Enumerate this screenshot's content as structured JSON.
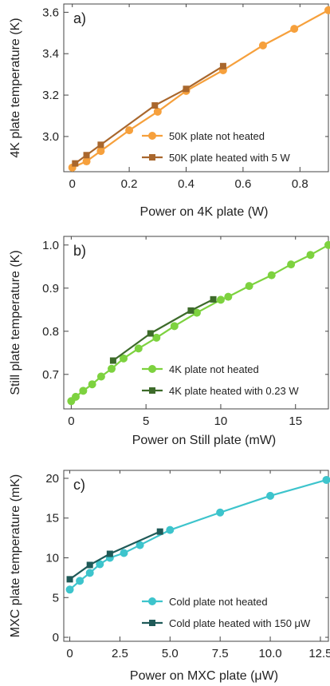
{
  "chart_data": [
    {
      "type": "line",
      "panel_label": "a)",
      "xlabel": "Power on 4K plate (W)",
      "ylabel": "4K plate temperature (K)",
      "xlim": [
        -0.03,
        0.9
      ],
      "ylim": [
        2.83,
        3.64
      ],
      "xticks": [
        0,
        0.2,
        0.4,
        0.6,
        0.8
      ],
      "xtick_labels": [
        "0",
        "0.2",
        "0.4",
        "0.6",
        "0.8"
      ],
      "yticks": [
        3.0,
        3.2,
        3.4,
        3.6
      ],
      "ytick_labels": [
        "3.0",
        "3.2",
        "3.4",
        "3.6"
      ],
      "legend_position": "bottom-right",
      "series": [
        {
          "name": "50K plate not heated",
          "marker": "circle",
          "color": "#f6a03c",
          "x": [
            0,
            0.05,
            0.1,
            0.2,
            0.3,
            0.4,
            0.53,
            0.67,
            0.78,
            0.9
          ],
          "y": [
            2.85,
            2.88,
            2.93,
            3.03,
            3.12,
            3.22,
            3.32,
            3.44,
            3.52,
            3.61
          ]
        },
        {
          "name": "50K plate heated with 5 W",
          "marker": "square",
          "color": "#a9672d",
          "x": [
            0.01,
            0.05,
            0.1,
            0.29,
            0.4,
            0.53
          ],
          "y": [
            2.87,
            2.91,
            2.96,
            3.15,
            3.23,
            3.34
          ]
        }
      ]
    },
    {
      "type": "line",
      "panel_label": "b)",
      "xlabel": "Power on Still plate (mW)",
      "ylabel": "Still plate temperature (K)",
      "xlim": [
        -0.5,
        17.2
      ],
      "ylim": [
        0.62,
        1.02
      ],
      "xticks": [
        0,
        5,
        10,
        15
      ],
      "xtick_labels": [
        "0",
        "5",
        "10",
        "15"
      ],
      "yticks": [
        0.7,
        0.8,
        0.9,
        1.0
      ],
      "ytick_labels": [
        "0.7",
        "0.8",
        "0.9",
        "1.0"
      ],
      "legend_position": "bottom-right",
      "series": [
        {
          "name": "4K plate not heated",
          "marker": "circle",
          "color": "#7dd23f",
          "x": [
            0,
            0.3,
            0.8,
            1.4,
            2.0,
            2.7,
            3.5,
            4.5,
            5.7,
            6.9,
            8.4,
            10.0,
            10.5,
            11.9,
            13.4,
            14.7,
            16.0,
            17.2
          ],
          "y": [
            0.638,
            0.648,
            0.662,
            0.677,
            0.695,
            0.713,
            0.737,
            0.76,
            0.785,
            0.812,
            0.843,
            0.873,
            0.88,
            0.905,
            0.93,
            0.955,
            0.977,
            1.0
          ]
        },
        {
          "name": "4K plate heated with 0.23 W",
          "marker": "square",
          "color": "#3d6b2a",
          "x": [
            2.8,
            5.3,
            8.0,
            9.5
          ],
          "y": [
            0.732,
            0.795,
            0.848,
            0.874
          ]
        }
      ]
    },
    {
      "type": "line",
      "panel_label": "c)",
      "xlabel": "Power on MXC plate (μW)",
      "ylabel": "MXC plate temperature (mK)",
      "xlim": [
        -0.3,
        12.9
      ],
      "ylim": [
        -0.5,
        21
      ],
      "xticks": [
        0,
        2.5,
        5,
        7.5,
        10,
        12.5
      ],
      "xtick_labels": [
        "0",
        "2.5",
        "5.0",
        "7.5",
        "10.0",
        "12.5"
      ],
      "yticks": [
        0,
        5,
        10,
        15,
        20
      ],
      "ytick_labels": [
        "0",
        "5",
        "10",
        "15",
        "20"
      ],
      "legend_position": "bottom-right",
      "series": [
        {
          "name": "Cold plate not heated",
          "marker": "circle",
          "color": "#3dc4cc",
          "x": [
            0,
            0.5,
            1.0,
            1.5,
            2.0,
            2.7,
            3.5,
            5.0,
            7.5,
            10.0,
            12.8
          ],
          "y": [
            6.0,
            7.1,
            8.1,
            9.2,
            10.0,
            10.6,
            11.6,
            13.5,
            15.7,
            17.8,
            19.8
          ]
        },
        {
          "name": "Cold plate heated with 150 μW",
          "marker": "square",
          "color": "#1f5a58",
          "x": [
            0,
            1.0,
            2.0,
            4.5
          ],
          "y": [
            7.3,
            9.1,
            10.5,
            13.3
          ]
        }
      ]
    }
  ]
}
